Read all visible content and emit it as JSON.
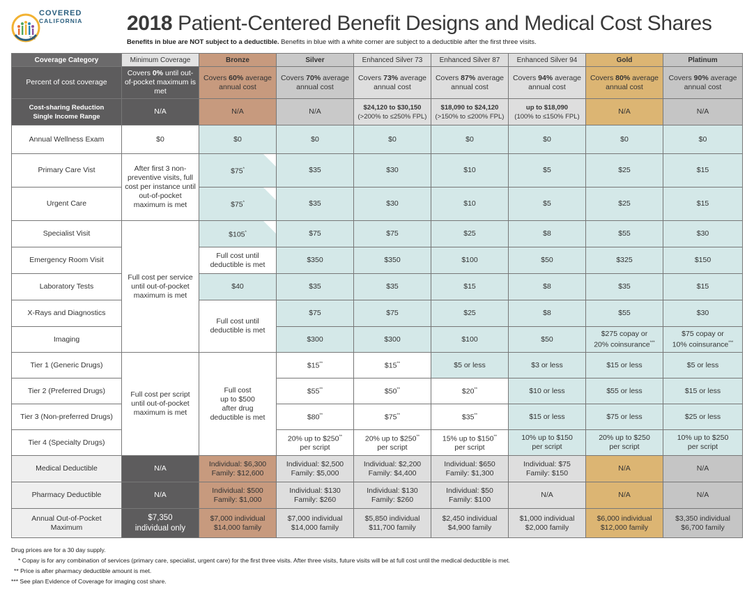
{
  "logo": {
    "line1": "COVERED",
    "line2": "CALIFORNIA",
    "tm": "TM"
  },
  "title_year": "2018",
  "title_rest": " Patient-Centered Benefit Designs and Medical Cost Shares",
  "subtitle_bold": "Benefits in blue are NOT subject to a deductible.",
  "subtitle_rest": " Benefits in blue with a white corner are subject to a deductible after the first three visits.",
  "headers": [
    "Coverage Category",
    "Minimum Coverage",
    "Bronze",
    "Silver",
    "Enhanced Silver 73",
    "Enhanced Silver 87",
    "Enhanced Silver 94",
    "Gold",
    "Platinum"
  ],
  "percent": {
    "label": "Percent of cost coverage",
    "minimum": [
      "Covers ",
      "0%",
      " until out-of-pocket maximum is met"
    ],
    "plans": [
      [
        "Covers ",
        "60%",
        " average annual cost"
      ],
      [
        "Covers ",
        "70%",
        " average annual cost"
      ],
      [
        "Covers ",
        "73%",
        " average annual cost"
      ],
      [
        "Covers ",
        "87%",
        " average annual cost"
      ],
      [
        "Covers ",
        "94%",
        " average annual cost"
      ],
      [
        "Covers ",
        "80%",
        " average annual cost"
      ],
      [
        "Covers ",
        "90%",
        " average annual cost"
      ]
    ]
  },
  "csr": {
    "label_l1": "Cost-sharing Reduction",
    "label_l2": "Single Income Range",
    "minimum": "N/A",
    "bronze": "N/A",
    "silver": "N/A",
    "es73": [
      "$24,120 to $30,150",
      "(>200% to ≤250% FPL)"
    ],
    "es87": [
      "$18,090 to $24,120",
      "(>150% to ≤200% FPL)"
    ],
    "es94": [
      "up to $18,090",
      "(100% to ≤150% FPL)"
    ],
    "gold": "N/A",
    "platinum": "N/A"
  },
  "rows": {
    "wellness": {
      "label": "Annual Wellness Exam",
      "minimum": "$0",
      "values": [
        "$0",
        "$0",
        "$0",
        "$0",
        "$0",
        "$0",
        "$0"
      ]
    },
    "primary": {
      "label": "Primary Care Vist",
      "values": [
        "$75",
        "$35",
        "$30",
        "$10",
        "$5",
        "$25",
        "$15"
      ]
    },
    "urgent": {
      "label": "Urgent Care",
      "values": [
        "$75",
        "$35",
        "$30",
        "$10",
        "$5",
        "$25",
        "$15"
      ]
    },
    "min_visits": "After first 3 non-preventive visits, full cost per instance until out-of-pocket maximum is met",
    "specialist": {
      "label": "Specialist Visit",
      "values": [
        "$105",
        "$75",
        "$75",
        "$25",
        "$8",
        "$55",
        "$30"
      ]
    },
    "er": {
      "label": "Emergency Room Visit",
      "values": [
        "Full cost until deductible is met",
        "$350",
        "$350",
        "$100",
        "$50",
        "$325",
        "$150"
      ]
    },
    "lab": {
      "label": "Laboratory Tests",
      "values": [
        "$40",
        "$35",
        "$35",
        "$15",
        "$8",
        "$35",
        "$15"
      ]
    },
    "xray": {
      "label": "X-Rays and Diagnostics",
      "values": [
        "$75",
        "$75",
        "$25",
        "$8",
        "$55",
        "$30"
      ]
    },
    "imaging": {
      "label": "Imaging",
      "values": [
        "$300",
        "$300",
        "$100",
        "$50"
      ],
      "gold": [
        "$275 copay or",
        "20% coinsurance"
      ],
      "platinum": [
        "$75 copay or",
        "10% coinsurance"
      ]
    },
    "bronze_full_cost": "Full cost until deductible is met",
    "min_service": "Full cost per service until out-of-pocket maximum is met",
    "tier1": {
      "label": "Tier 1 (Generic Drugs)",
      "values": [
        "$15",
        "$15",
        "$5 or less",
        "$3 or less",
        "$15 or less",
        "$5 or less"
      ]
    },
    "tier2": {
      "label": "Tier 2 (Preferred Drugs)",
      "values": [
        "$55",
        "$50",
        "$20",
        "$10 or less",
        "$55 or less",
        "$15 or less"
      ]
    },
    "tier3": {
      "label": "Tier 3 (Non-preferred Drugs)",
      "values": [
        "$80",
        "$75",
        "$35",
        "$15 or less",
        "$75 or less",
        "$25 or less"
      ]
    },
    "tier4": {
      "label": "Tier 4 (Specialty Drugs)",
      "values": [
        [
          "20% up to $250",
          "per script"
        ],
        [
          "20% up to $250",
          "per script"
        ],
        [
          "15% up to $150",
          "per script"
        ],
        [
          "10% up to $150",
          "per script"
        ],
        [
          "20% up to $250",
          "per script"
        ],
        [
          "10% up to $250",
          "per script"
        ]
      ]
    },
    "min_script": "Full cost per script until out-of-pocket maximum is met",
    "bronze_drug": [
      "Full cost",
      "up to $500",
      "after drug",
      "deductible is met"
    ],
    "med_deductible": {
      "label": "Medical Deductible",
      "minimum": "N/A",
      "values": [
        [
          "Individual: $6,300",
          "Family: $12,600"
        ],
        [
          "Individual: $2,500",
          "Family: $5,000"
        ],
        [
          "Individual: $2,200",
          "Family: $4,400"
        ],
        [
          "Individual: $650",
          "Family: $1,300"
        ],
        [
          "Individual: $75",
          "Family: $150"
        ]
      ],
      "gold": "N/A",
      "platinum": "N/A"
    },
    "pharm_deductible": {
      "label": "Pharmacy Deductible",
      "minimum": "N/A",
      "values": [
        [
          "Individual: $500",
          "Family: $1,000"
        ],
        [
          "Individual: $130",
          "Family: $260"
        ],
        [
          "Individual: $130",
          "Family: $260"
        ],
        [
          "Individual: $50",
          "Family: $100"
        ]
      ],
      "es94": "N/A",
      "gold": "N/A",
      "platinum": "N/A"
    },
    "oop": {
      "label_l1": "Annual Out-of-Pocket",
      "label_l2": "Maximum",
      "minimum": [
        "$7,350",
        "individual only"
      ],
      "values": [
        [
          "$7,000 individual",
          "$14,000 family"
        ],
        [
          "$7,000 individual",
          "$14,000 family"
        ],
        [
          "$5,850 individual",
          "$11,700 family"
        ],
        [
          "$2,450 individual",
          "$4,900 family"
        ],
        [
          "$1,000 individual",
          "$2,000 family"
        ],
        [
          "$6,000 individual",
          "$12,000 family"
        ],
        [
          "$3,350 individual",
          "$6,700 family"
        ]
      ]
    }
  },
  "marks": {
    "single": "*",
    "double": "**",
    "triple": "***"
  },
  "notes": [
    "Drug prices are for a 30 day supply.",
    "* Copay is for any combination of services (primary care, specialist, urgent care) for the first three visits. After three visits, future visits will be at full cost until the medical deductible is met.",
    "** Price is after pharmacy deductible amount is met.",
    "*** See plan Evidence of Coverage for imaging cost share."
  ]
}
